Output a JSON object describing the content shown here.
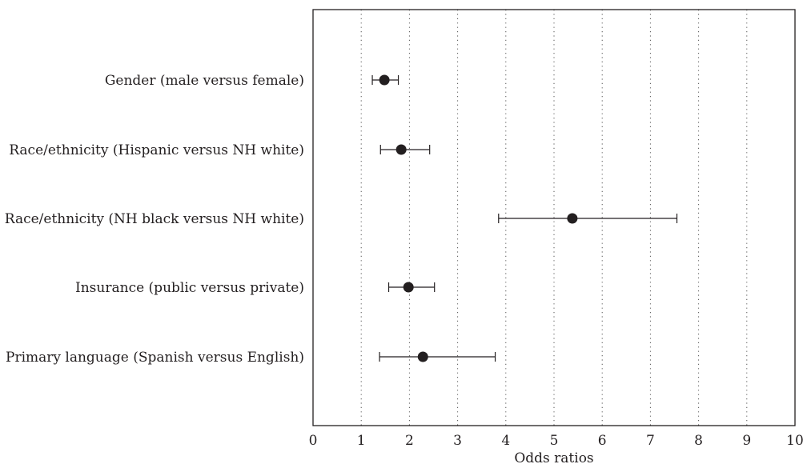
{
  "chart_data": {
    "type": "forest",
    "xlabel": "Odds ratios",
    "xlim": [
      0,
      10
    ],
    "xticks": [
      "0",
      "1",
      "2",
      "3",
      "4",
      "5",
      "6",
      "7",
      "8",
      "9",
      "10"
    ],
    "grid": "vertical dotted",
    "rows": [
      {
        "label": "Gender (male versus female)",
        "or": 1.48,
        "lower": 1.23,
        "upper": 1.77
      },
      {
        "label": "Race/ethnicity (Hispanic versus NH white)",
        "or": 1.83,
        "lower": 1.4,
        "upper": 2.42
      },
      {
        "label": "Race/ethnicity (NH black versus NH white)",
        "or": 5.38,
        "lower": 3.85,
        "upper": 7.55
      },
      {
        "label": "Insurance (public versus private)",
        "or": 1.98,
        "lower": 1.57,
        "upper": 2.52
      },
      {
        "label": "Primary language (Spanish versus English)",
        "or": 2.28,
        "lower": 1.38,
        "upper": 3.78
      }
    ]
  }
}
